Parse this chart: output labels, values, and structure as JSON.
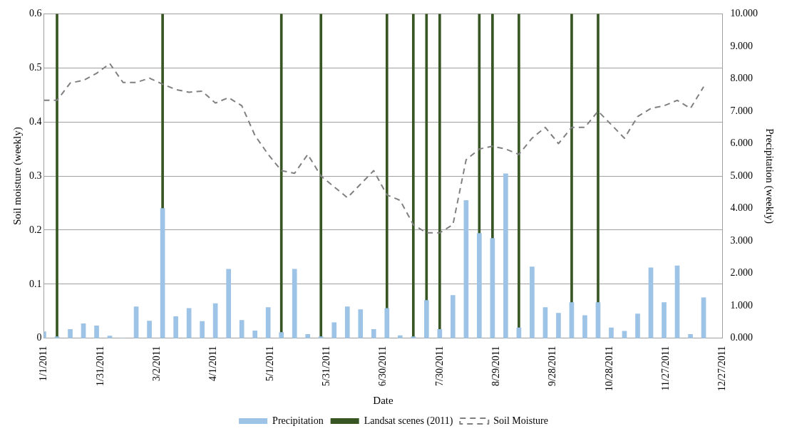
{
  "chart_data": {
    "type": "bar",
    "xlabel": "Date",
    "ylabel": "Soil moisture (weekly)",
    "y2label": "Precipitation (weekly)",
    "x": [
      "2011-01-01",
      "2011-01-08",
      "2011-01-15",
      "2011-01-22",
      "2011-01-29",
      "2011-02-05",
      "2011-02-12",
      "2011-02-19",
      "2011-02-26",
      "2011-03-05",
      "2011-03-12",
      "2011-03-19",
      "2011-03-26",
      "2011-04-02",
      "2011-04-09",
      "2011-04-16",
      "2011-04-23",
      "2011-04-30",
      "2011-05-07",
      "2011-05-14",
      "2011-05-21",
      "2011-05-28",
      "2011-06-04",
      "2011-06-11",
      "2011-06-18",
      "2011-06-25",
      "2011-07-02",
      "2011-07-09",
      "2011-07-16",
      "2011-07-23",
      "2011-07-30",
      "2011-08-06",
      "2011-08-13",
      "2011-08-20",
      "2011-08-27",
      "2011-09-03",
      "2011-09-10",
      "2011-09-17",
      "2011-09-24",
      "2011-10-01",
      "2011-10-08",
      "2011-10-15",
      "2011-10-22",
      "2011-10-29",
      "2011-11-05",
      "2011-11-12",
      "2011-11-19",
      "2011-11-26",
      "2011-12-03",
      "2011-12-10",
      "2011-12-17"
    ],
    "series": [
      {
        "name": "Precipitation",
        "axis": "y2",
        "color": "#9dc3e6",
        "values": [
          0.2,
          0.05,
          0.27,
          0.45,
          0.38,
          0.07,
          0,
          0.97,
          0.53,
          4.0,
          0.67,
          0.92,
          0.52,
          1.07,
          2.13,
          0.55,
          0.23,
          0.95,
          0.18,
          2.13,
          0.12,
          0.05,
          0.48,
          0.97,
          0.88,
          0.27,
          0.92,
          0.08,
          0.05,
          1.17,
          0.27,
          1.32,
          4.25,
          3.23,
          3.08,
          5.07,
          0.32,
          2.2,
          0.95,
          0.77,
          1.1,
          0.7,
          1.1,
          0.32,
          0.22,
          0.75,
          2.17,
          1.1,
          2.23,
          0.12,
          1.25
        ]
      },
      {
        "name": "Landsat scenes (2011)",
        "color": "#375623",
        "x": [
          "2011-01-08",
          "2011-03-05",
          "2011-05-07",
          "2011-05-28",
          "2011-07-02",
          "2011-07-16",
          "2011-07-23",
          "2011-07-30",
          "2011-08-20",
          "2011-08-27",
          "2011-09-10",
          "2011-10-08",
          "2011-10-22"
        ],
        "values": [
          0.6,
          0.6,
          0.6,
          0.6,
          0.6,
          0.6,
          0.6,
          0.6,
          0.6,
          0.6,
          0.6,
          0.6,
          0.6
        ]
      },
      {
        "name": "Soil Moisture",
        "type": "line",
        "color": "#808080",
        "line_style": "dashed",
        "values": [
          0.44,
          0.44,
          0.472,
          0.477,
          0.49,
          0.508,
          0.473,
          0.473,
          0.481,
          0.47,
          0.46,
          0.455,
          0.457,
          0.435,
          0.445,
          0.43,
          0.375,
          0.34,
          0.31,
          0.305,
          0.34,
          0.3,
          0.28,
          0.26,
          0.285,
          0.31,
          0.265,
          0.255,
          0.21,
          0.195,
          0.195,
          0.21,
          0.33,
          0.35,
          0.355,
          0.35,
          0.34,
          0.37,
          0.39,
          0.36,
          0.39,
          0.39,
          0.42,
          0.395,
          0.37,
          0.41,
          0.425,
          0.43,
          0.44,
          0.425,
          0.465
        ]
      }
    ],
    "xlim": [
      "2011-01-01",
      "2011-12-27"
    ],
    "xticks": [
      {
        "value": "2011-01-01",
        "label": "1/1/2011"
      },
      {
        "value": "2011-01-31",
        "label": "1/31/2011"
      },
      {
        "value": "2011-03-02",
        "label": "3/2/2011"
      },
      {
        "value": "2011-04-01",
        "label": "4/1/2011"
      },
      {
        "value": "2011-05-01",
        "label": "5/1/2011"
      },
      {
        "value": "2011-05-31",
        "label": "5/31/2011"
      },
      {
        "value": "2011-06-30",
        "label": "6/30/2011"
      },
      {
        "value": "2011-07-30",
        "label": "7/30/2011"
      },
      {
        "value": "2011-08-29",
        "label": "8/29/2011"
      },
      {
        "value": "2011-09-28",
        "label": "9/28/2011"
      },
      {
        "value": "2011-10-28",
        "label": "10/28/2011"
      },
      {
        "value": "2011-11-27",
        "label": "11/27/2011"
      },
      {
        "value": "2011-12-27",
        "label": "12/27/2011"
      }
    ],
    "ylim": [
      0,
      0.6
    ],
    "yticks": [
      0,
      0.1,
      0.2,
      0.3,
      0.4,
      0.5,
      0.6
    ],
    "y2lim": [
      0,
      10
    ],
    "y2ticks": [
      {
        "value": 0,
        "label": "0.000"
      },
      {
        "value": 1,
        "label": "1.000"
      },
      {
        "value": 2,
        "label": "2.000"
      },
      {
        "value": 3,
        "label": "3.000"
      },
      {
        "value": 4,
        "label": "4.000"
      },
      {
        "value": 5,
        "label": "5.000"
      },
      {
        "value": 6,
        "label": "6.000"
      },
      {
        "value": 7,
        "label": "7.000"
      },
      {
        "value": 8,
        "label": "8.000"
      },
      {
        "value": 9,
        "label": "9.000"
      },
      {
        "value": 10,
        "label": "10.000"
      }
    ],
    "grid": "y",
    "legend": "bottom",
    "marker": "none"
  }
}
